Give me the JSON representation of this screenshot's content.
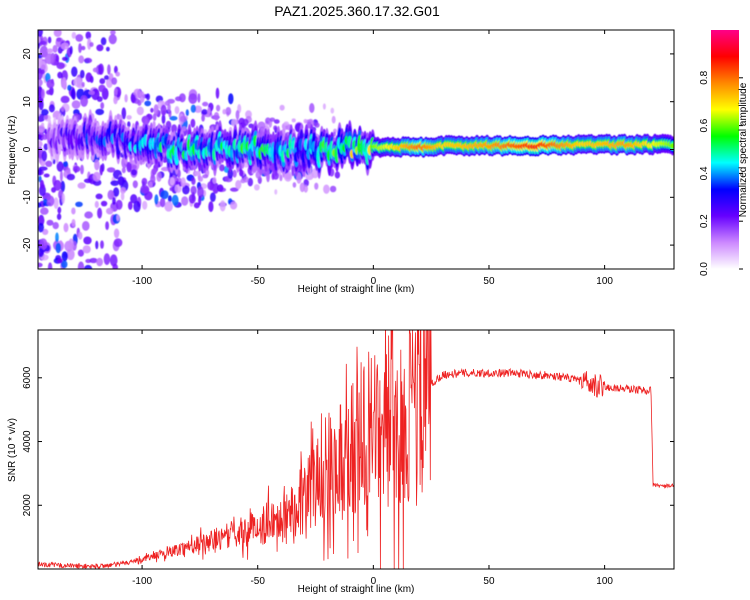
{
  "figure": {
    "title": "PAZ1.2025.360.17.32.G01"
  },
  "chart_data": [
    {
      "type": "heatmap",
      "title": "PAZ1.2025.360.17.32.G01",
      "xlabel": "Height of straight line (km)",
      "ylabel": "Frequency (Hz)",
      "xlim": [
        -145,
        130
      ],
      "ylim": [
        -25,
        25
      ],
      "x_ticks": [
        -100,
        -50,
        0,
        50,
        100
      ],
      "y_ticks": [
        -20,
        -10,
        0,
        10,
        20
      ],
      "colorbar": {
        "label": "Normalized spectral amplitude",
        "range": [
          0,
          1
        ],
        "ticks": [
          "0.0",
          "0.2",
          "0.4",
          "0.6",
          "0.8"
        ],
        "colors": [
          "#ffffff",
          "#cc88ff",
          "#6600ff",
          "#0000ff",
          "#00ffff",
          "#00ff00",
          "#ffff00",
          "#ff8800",
          "#ff0000",
          "#ff0088"
        ]
      },
      "ridge": {
        "x": [
          -140,
          -125,
          -110,
          -100,
          -90,
          -80,
          -70,
          -60,
          -50,
          -40,
          -30,
          -20,
          -10,
          0,
          10,
          20,
          30,
          50,
          70,
          90,
          110,
          130
        ],
        "center_hz": [
          2,
          3,
          2,
          1.5,
          0.5,
          0,
          0.5,
          0,
          0.5,
          0,
          -0.5,
          0,
          0.5,
          0.5,
          0.5,
          0.5,
          0.8,
          0.8,
          0.8,
          1,
          1,
          1
        ],
        "peak_amplitude": [
          0.2,
          0.3,
          0.35,
          0.4,
          0.45,
          0.5,
          0.45,
          0.5,
          0.5,
          0.45,
          0.45,
          0.55,
          0.6,
          0.6,
          0.7,
          0.8,
          0.7,
          0.75,
          0.85,
          0.7,
          0.75,
          0.6
        ]
      }
    },
    {
      "type": "line",
      "xlabel": "Height of straight line (km)",
      "ylabel": "SNR (10 * v/v)",
      "xlim": [
        -145,
        130
      ],
      "ylim": [
        0,
        7500
      ],
      "x_ticks": [
        -100,
        -50,
        0,
        50,
        100
      ],
      "y_ticks": [
        2000,
        4000,
        6000
      ],
      "color": "#ee2222",
      "series": [
        {
          "name": "SNR",
          "x": [
            -145,
            -130,
            -120,
            -110,
            -100,
            -90,
            -80,
            -70,
            -60,
            -50,
            -40,
            -30,
            -25,
            -20,
            -15,
            -10,
            -5,
            0,
            5,
            8,
            10,
            12,
            15,
            20,
            25,
            30,
            40,
            50,
            60,
            70,
            80,
            90,
            95,
            100,
            110,
            120,
            121,
            125,
            130
          ],
          "y": [
            150,
            100,
            80,
            150,
            300,
            500,
            700,
            900,
            1100,
            1300,
            1700,
            2200,
            2700,
            3100,
            3500,
            3800,
            4000,
            4200,
            4500,
            5000,
            3000,
            4400,
            5000,
            5400,
            5800,
            6100,
            6150,
            6150,
            6150,
            6100,
            6050,
            5900,
            5700,
            5700,
            5650,
            5600,
            2650,
            2600,
            2600
          ]
        }
      ]
    }
  ]
}
